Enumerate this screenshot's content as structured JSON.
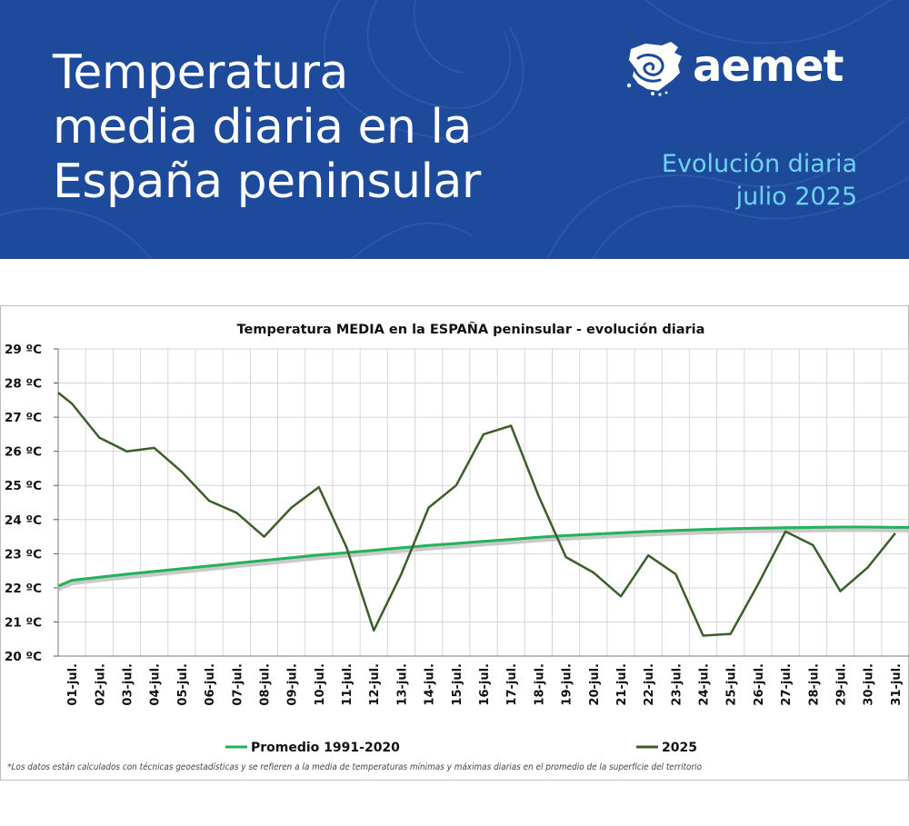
{
  "header": {
    "title_lines": [
      "Temperatura",
      "media diaria en la",
      "España peninsular"
    ],
    "brand": "aemet",
    "subtitle_lines": [
      "Evolución diaria",
      "julio 2025"
    ]
  },
  "colors": {
    "banner_bg": "#1d4a9a",
    "subtitle": "#6fd3f4",
    "series_average": "#22b25a",
    "series_2025": "#3b5e2b",
    "grid": "#d6d6d6"
  },
  "icons": {
    "logo": "aemet-spain-map-logo"
  },
  "chart_data": {
    "type": "line",
    "title": "Temperatura MEDIA en la ESPAÑA peninsular - evolución diaria",
    "xlabel": "",
    "ylabel": "",
    "ylim": [
      20,
      29
    ],
    "y_ticks": [
      "20 ºC",
      "21 ºC",
      "22 ºC",
      "23 ºC",
      "24 ºC",
      "25 ºC",
      "26 ºC",
      "27 ºC",
      "28 ºC",
      "29 ºC"
    ],
    "categories": [
      "01-jul.",
      "02-jul.",
      "03-jul.",
      "04-jul.",
      "05-jul.",
      "06-jul.",
      "07-jul.",
      "08-jul.",
      "09-jul.",
      "10-jul.",
      "11-jul.",
      "12-jul.",
      "13-jul.",
      "14-jul.",
      "15-jul.",
      "16-jul.",
      "17-jul.",
      "18-jul.",
      "19-jul.",
      "20-jul.",
      "21-jul.",
      "22-jul.",
      "23-jul.",
      "24-jul.",
      "25-jul.",
      "26-jul.",
      "27-jul.",
      "28-jul.",
      "29-jul.",
      "30-jul.",
      "31-jul."
    ],
    "grid": true,
    "legend_position": "bottom",
    "series": [
      {
        "name": "Promedio 1991-2020",
        "values": [
          22.22,
          22.31,
          22.4,
          22.48,
          22.56,
          22.64,
          22.72,
          22.8,
          22.88,
          22.96,
          23.03,
          23.1,
          23.17,
          23.24,
          23.3,
          23.36,
          23.42,
          23.48,
          23.53,
          23.57,
          23.61,
          23.65,
          23.68,
          23.71,
          23.73,
          23.75,
          23.76,
          23.77,
          23.78,
          23.78,
          23.77
        ],
        "start": 22.05,
        "end": 23.77
      },
      {
        "name": "2025",
        "values": [
          27.4,
          26.4,
          26.0,
          26.1,
          25.4,
          24.55,
          24.2,
          23.5,
          24.35,
          24.95,
          23.2,
          20.75,
          22.4,
          24.35,
          25.0,
          26.5,
          26.75,
          24.7,
          22.9,
          22.45,
          21.75,
          22.95,
          22.4,
          20.6,
          20.65,
          22.1,
          23.65,
          23.25,
          21.9,
          22.6,
          23.6
        ],
        "start": 27.72
      }
    ],
    "footnote": "*Los datos están calculados con técnicas geoestadísticas y se refieren a la media de temperaturas mínimas y máximas diarias en el promedio de la superficie del territorio"
  }
}
